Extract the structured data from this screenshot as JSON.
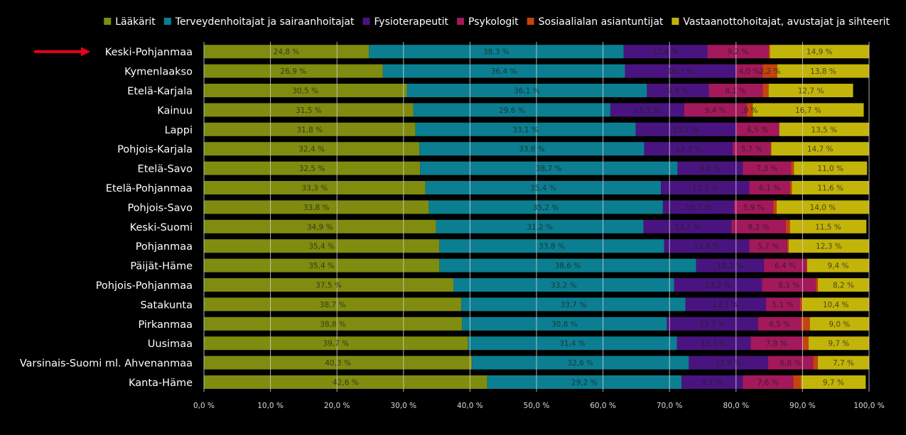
{
  "colors": {
    "background": "#000000",
    "grid": "#cfcfcf",
    "category_text": "#ffffff",
    "axis_text": "#d9d9d9",
    "arrow": "#e8001c"
  },
  "highlight_arrow_icon": "right-arrow-icon",
  "chart_data": {
    "type": "bar",
    "orientation": "horizontal",
    "stacked": true,
    "percent": true,
    "highlighted_category": "Keski-Pohjanmaa",
    "categories": [
      "Keski-Pohjanmaa",
      "Kymenlaakso",
      "Etelä-Karjala",
      "Kainuu",
      "Lappi",
      "Pohjois-Karjala",
      "Etelä-Savo",
      "Etelä-Pohjanmaa",
      "Pohjois-Savo",
      "Keski-Suomi",
      "Pohjanmaa",
      "Päijät-Häme",
      "Pohjois-Pohjanmaa",
      "Satakunta",
      "Pirkanmaa",
      "Uusimaa",
      "Varsinais-Suomi ml. Ahvenanmaa",
      "Kanta-Häme"
    ],
    "series": [
      {
        "name": "Lääkärit",
        "color": "#7f8c0f",
        "values": [
          24.8,
          26.9,
          30.5,
          31.5,
          31.8,
          32.4,
          32.5,
          33.3,
          33.8,
          34.9,
          35.4,
          35.4,
          37.5,
          38.7,
          38.8,
          39.7,
          40.3,
          42.6
        ],
        "labels": [
          "24,8 %",
          "26,9 %",
          "30,5 %",
          "31,5 %",
          "31,8 %",
          "32,4 %",
          "32,5 %",
          "33,3 %",
          "33,8 %",
          "34,9 %",
          "35,4 %",
          "35,4 %",
          "37,5 %",
          "38,7 %",
          "38,8 %",
          "39,7 %",
          "40,3 %",
          "42,6 %"
        ]
      },
      {
        "name": "Terveydenhoitajat ja sairaanhoitajat",
        "color": "#0b7f91",
        "values": [
          38.3,
          36.4,
          36.1,
          29.6,
          33.1,
          33.8,
          38.7,
          35.4,
          35.2,
          31.2,
          33.8,
          38.6,
          33.2,
          33.7,
          30.8,
          31.4,
          32.6,
          29.2
        ],
        "labels": [
          "38,3 %",
          "36,4 %",
          "36,1 %",
          "29,6 %",
          "33,1 %",
          "33,8 %",
          "38,7 %",
          "35,4 %",
          "35,2 %",
          "31,2 %",
          "33,8 %",
          "38,6 %",
          "33,2 %",
          "33,7 %",
          "30,8 %",
          "31,4 %",
          "32,6 %",
          "29,2 %"
        ]
      },
      {
        "name": "Fysioterapeutit",
        "color": "#4a1480",
        "values": [
          12.6,
          16.7,
          9.3,
          11.1,
          15.1,
          13.3,
          9.8,
          13.3,
          10.7,
          13.2,
          12.8,
          10.2,
          13.2,
          12.1,
          13.7,
          11.1,
          11.9,
          9.2
        ],
        "labels": [
          "12,6 %",
          "16,7 %",
          "9,3 %",
          "11,1 %",
          "15,1 %",
          "13,3 %",
          "9,8 %",
          "13,3 %",
          "10,7 %",
          "13,2 %",
          "12,8 %",
          "10,2 %",
          "13,2 %",
          "12,1 %",
          "13,7 %",
          "11,1 %",
          "11,9 %",
          "9,2 %"
        ]
      },
      {
        "name": "Psykologit",
        "color": "#a3195b",
        "values": [
          9.2,
          4.0,
          8.1,
          9.4,
          6.5,
          5.7,
          7.3,
          6.1,
          5.9,
          8.2,
          5.7,
          6.4,
          8.1,
          5.1,
          6.5,
          7.8,
          6.8,
          7.6
        ],
        "labels": [
          "9,2 %",
          "4,0 %",
          "8,1 %",
          "9,4 %",
          "6,5 %",
          "5,7 %",
          "7,3 %",
          "6,1 %",
          "5,9 %",
          "8,2 %",
          "5,7 %",
          "6,4 %",
          "8,1 %",
          "5,1 %",
          "6,5 %",
          "7,8 %",
          "6,8 %",
          "7,6 %"
        ]
      },
      {
        "name": "Sosiaalialan asiantuntijat",
        "color": "#c4450c",
        "values": [
          0.2,
          2.2,
          0.9,
          0.9,
          0.0,
          0.1,
          0.4,
          0.3,
          0.5,
          0.6,
          0.2,
          0.1,
          0.3,
          0.4,
          1.3,
          0.9,
          0.7,
          1.2
        ],
        "labels": [
          "",
          "2,2 %",
          "",
          ",9 %",
          "",
          "",
          "",
          "",
          "",
          "",
          "",
          "",
          "",
          "",
          "",
          "",
          "",
          ""
        ]
      },
      {
        "name": "Vastaanottohoitajat, avustajat ja sihteerit",
        "color": "#c3b40a",
        "values": [
          14.9,
          13.8,
          12.7,
          16.7,
          13.5,
          14.7,
          11.0,
          11.6,
          14.0,
          11.5,
          12.3,
          9.4,
          8.2,
          10.4,
          9.0,
          9.7,
          7.7,
          9.7
        ],
        "labels": [
          "14,9 %",
          "13,8 %",
          "12,7 %",
          "16,7 %",
          "13,5 %",
          "14,7 %",
          "11,0 %",
          "11,6 %",
          "14,0 %",
          "11,5 %",
          "12,3 %",
          "9,4 %",
          "8,2 %",
          "10,4 %",
          "9,0 %",
          "9,7 %",
          "7,7 %",
          "9,7 %"
        ]
      }
    ],
    "xlim": [
      0,
      100
    ],
    "x_ticks": [
      0,
      10,
      20,
      30,
      40,
      50,
      60,
      70,
      80,
      90,
      100
    ],
    "x_tick_labels": [
      "0,0 %",
      "10,0 %",
      "20,0 %",
      "30,0 %",
      "40,0 %",
      "50,0 %",
      "60,0 %",
      "70,0 %",
      "80,0 %",
      "90,0 %",
      "100,0 %"
    ],
    "grid": true,
    "legend_position": "top-right"
  }
}
